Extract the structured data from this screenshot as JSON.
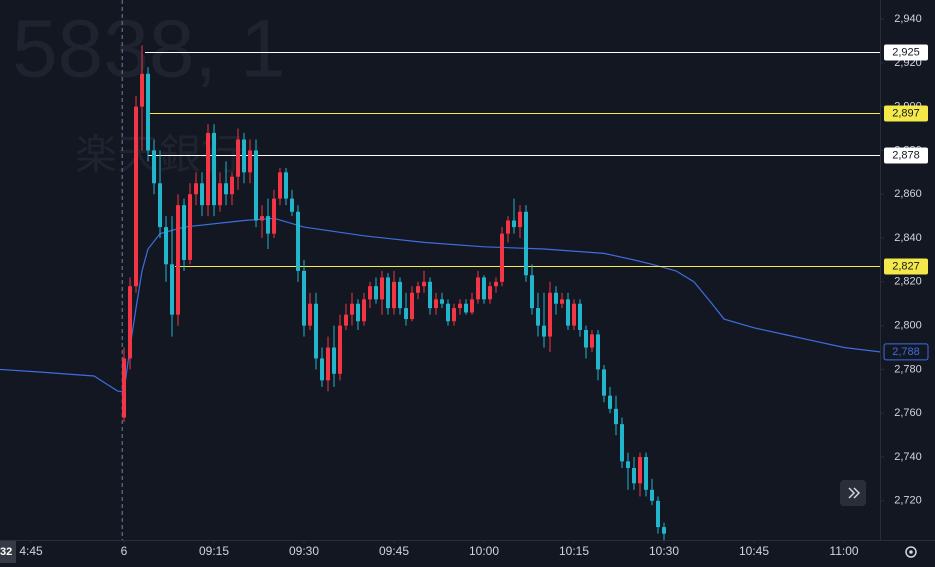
{
  "chart_data": {
    "type": "candlestick",
    "watermark": "5838, 1",
    "watermark_sub": "楽天銀行",
    "crosshair_label": "32",
    "xlim": [
      -20.67,
      126
    ],
    "ylim": [
      2702.1,
      2948.7
    ],
    "xticks": [
      {
        "value": -15.5,
        "label": "4:45"
      },
      {
        "value": 0,
        "label": "6"
      },
      {
        "value": 15,
        "label": "09:15"
      },
      {
        "value": 30,
        "label": "09:30"
      },
      {
        "value": 45,
        "label": "09:45"
      },
      {
        "value": 60,
        "label": "10:00"
      },
      {
        "value": 75,
        "label": "10:15"
      },
      {
        "value": 90,
        "label": "10:30"
      },
      {
        "value": 105,
        "label": "10:45"
      },
      {
        "value": 120,
        "label": "11:00"
      }
    ],
    "yticks": [
      {
        "value": 2720,
        "label": "2,720"
      },
      {
        "value": 2740,
        "label": "2,740"
      },
      {
        "value": 2760,
        "label": "2,760"
      },
      {
        "value": 2780,
        "label": "2,780"
      },
      {
        "value": 2800,
        "label": "2,800"
      },
      {
        "value": 2820,
        "label": "2,820"
      },
      {
        "value": 2840,
        "label": "2,840"
      },
      {
        "value": 2860,
        "label": "2,860"
      },
      {
        "value": 2880,
        "label": "2,880"
      },
      {
        "value": 2900,
        "label": "2,900"
      },
      {
        "value": 2920,
        "label": "2,920"
      },
      {
        "value": 2940,
        "label": "2,940"
      }
    ],
    "up_color": "#f23645",
    "down_color": "#22b5cc",
    "candles": {
      "x": [
        0,
        1,
        2,
        3,
        4,
        5,
        6,
        7,
        8,
        9,
        10,
        11,
        12,
        13,
        14,
        15,
        16,
        17,
        18,
        19,
        20,
        21,
        22,
        23,
        24,
        25,
        26,
        27,
        28,
        29,
        30,
        31,
        32,
        33,
        34,
        35,
        36,
        37,
        38,
        39,
        40,
        41,
        42,
        43,
        44,
        45,
        46,
        47,
        48,
        49,
        50,
        51,
        52,
        53,
        54,
        55,
        56,
        57,
        58,
        59,
        60,
        61,
        62,
        63,
        64,
        65,
        66,
        67,
        68,
        69,
        70,
        71,
        72,
        73,
        74,
        75,
        76,
        77,
        78,
        79,
        80,
        81,
        82,
        83,
        84,
        85,
        86,
        87,
        88,
        89,
        90
      ],
      "open": [
        2758,
        2785,
        2818,
        2900,
        2915,
        2880,
        2865,
        2845,
        2828,
        2805,
        2855,
        2830,
        2860,
        2865,
        2855,
        2888,
        2855,
        2865,
        2860,
        2868,
        2885,
        2870,
        2880,
        2848,
        2850,
        2842,
        2858,
        2870,
        2858,
        2852,
        2825,
        2800,
        2810,
        2785,
        2775,
        2790,
        2778,
        2800,
        2805,
        2810,
        2802,
        2812,
        2818,
        2812,
        2822,
        2808,
        2820,
        2808,
        2803,
        2815,
        2818,
        2820,
        2808,
        2812,
        2810,
        2802,
        2808,
        2810,
        2806,
        2812,
        2822,
        2812,
        2818,
        2820,
        2842,
        2848,
        2845,
        2852,
        2823,
        2808,
        2800,
        2795,
        2815,
        2810,
        2812,
        2800,
        2810,
        2798,
        2790,
        2796,
        2780,
        2768,
        2762,
        2755,
        2738,
        2735,
        2728,
        2740,
        2725,
        2720,
        2708
      ],
      "high": [
        2790,
        2822,
        2905,
        2928,
        2918,
        2885,
        2880,
        2850,
        2850,
        2860,
        2858,
        2865,
        2870,
        2870,
        2892,
        2892,
        2870,
        2875,
        2870,
        2890,
        2888,
        2885,
        2885,
        2855,
        2858,
        2862,
        2872,
        2872,
        2862,
        2855,
        2830,
        2815,
        2815,
        2790,
        2795,
        2800,
        2805,
        2810,
        2815,
        2812,
        2815,
        2820,
        2822,
        2825,
        2824,
        2825,
        2822,
        2815,
        2818,
        2820,
        2825,
        2822,
        2815,
        2815,
        2812,
        2810,
        2812,
        2812,
        2815,
        2825,
        2823,
        2820,
        2822,
        2845,
        2850,
        2858,
        2855,
        2855,
        2828,
        2815,
        2815,
        2820,
        2818,
        2815,
        2815,
        2812,
        2812,
        2800,
        2798,
        2798,
        2782,
        2772,
        2768,
        2758,
        2742,
        2740,
        2742,
        2742,
        2730,
        2722,
        2710
      ],
      "low": [
        2756,
        2780,
        2815,
        2880,
        2875,
        2860,
        2840,
        2820,
        2795,
        2800,
        2825,
        2828,
        2855,
        2850,
        2850,
        2850,
        2852,
        2855,
        2855,
        2862,
        2865,
        2865,
        2845,
        2840,
        2835,
        2840,
        2855,
        2855,
        2850,
        2820,
        2795,
        2798,
        2780,
        2772,
        2770,
        2772,
        2775,
        2798,
        2800,
        2798,
        2800,
        2808,
        2810,
        2805,
        2805,
        2805,
        2805,
        2800,
        2802,
        2812,
        2815,
        2805,
        2805,
        2808,
        2800,
        2800,
        2805,
        2805,
        2805,
        2810,
        2810,
        2810,
        2815,
        2818,
        2838,
        2842,
        2840,
        2820,
        2805,
        2795,
        2790,
        2788,
        2805,
        2808,
        2798,
        2798,
        2795,
        2785,
        2788,
        2775,
        2765,
        2760,
        2750,
        2735,
        2725,
        2725,
        2722,
        2722,
        2718,
        2705,
        2702
      ],
      "close": [
        2785,
        2818,
        2900,
        2915,
        2880,
        2865,
        2845,
        2828,
        2805,
        2855,
        2830,
        2860,
        2865,
        2855,
        2888,
        2855,
        2865,
        2860,
        2868,
        2885,
        2870,
        2880,
        2848,
        2850,
        2842,
        2858,
        2870,
        2858,
        2852,
        2825,
        2800,
        2810,
        2785,
        2775,
        2790,
        2778,
        2800,
        2805,
        2810,
        2802,
        2812,
        2818,
        2812,
        2822,
        2808,
        2820,
        2808,
        2803,
        2815,
        2818,
        2820,
        2808,
        2812,
        2810,
        2802,
        2808,
        2810,
        2806,
        2812,
        2822,
        2812,
        2818,
        2820,
        2842,
        2848,
        2845,
        2852,
        2823,
        2808,
        2800,
        2795,
        2815,
        2810,
        2812,
        2800,
        2810,
        2798,
        2790,
        2796,
        2780,
        2768,
        2762,
        2755,
        2738,
        2735,
        2728,
        2740,
        2725,
        2720,
        2708,
        2705
      ]
    },
    "vwap": {
      "color": "#3d6ee0",
      "label": "2,788",
      "x": [
        -20.67,
        -15,
        -5,
        -1,
        0,
        1,
        2,
        3,
        4,
        6,
        10,
        20,
        25,
        30,
        40,
        50,
        60,
        70,
        80,
        85,
        88,
        92,
        95,
        98,
        100,
        105,
        110,
        115,
        120,
        126
      ],
      "values": [
        2780,
        2779,
        2777,
        2770,
        2770,
        2790,
        2808,
        2825,
        2835,
        2842,
        2845,
        2848,
        2849,
        2845,
        2841,
        2838,
        2836,
        2835,
        2833,
        2830,
        2828,
        2825,
        2820,
        2810,
        2803,
        2799,
        2796,
        2793,
        2790,
        2788
      ]
    },
    "levels": [
      {
        "value": 2925,
        "label": "2,925",
        "color": "#ffffff",
        "x0": 3.5
      },
      {
        "value": 2897,
        "label": "2,897",
        "color": "#f5e94a",
        "x0": 4
      },
      {
        "value": 2878,
        "label": "2,878",
        "color": "#ffffff",
        "x0": 4
      },
      {
        "value": 2827,
        "label": "2,827",
        "color": "#f5e94a",
        "x0": 8.5
      }
    ]
  }
}
